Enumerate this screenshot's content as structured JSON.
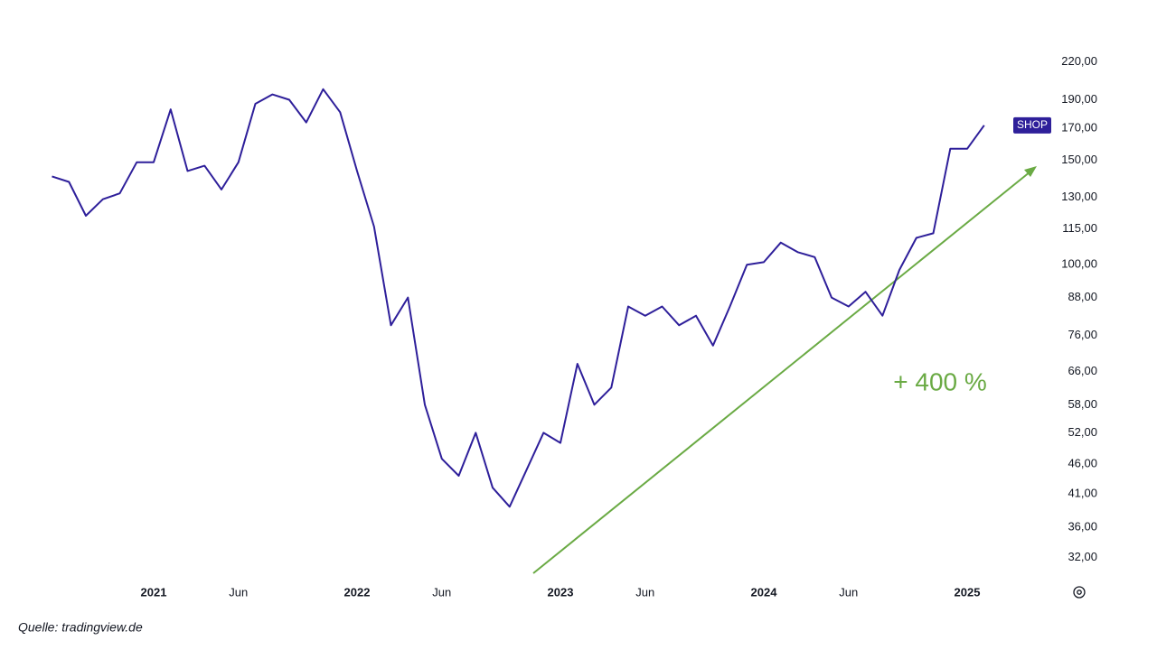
{
  "chart_data": {
    "type": "line",
    "log_scale": true,
    "grid": false,
    "annotation": "+ 400 %",
    "source": "Quelle: tradingview.de",
    "x": [
      "2020-07",
      "2020-08",
      "2020-09",
      "2020-10",
      "2020-11",
      "2020-12",
      "2021-01",
      "2021-02",
      "2021-03",
      "2021-04",
      "2021-05",
      "2021-06",
      "2021-07",
      "2021-08",
      "2021-09",
      "2021-10",
      "2021-11",
      "2021-12",
      "2022-01",
      "2022-02",
      "2022-03",
      "2022-04",
      "2022-05",
      "2022-06",
      "2022-07",
      "2022-08",
      "2022-09",
      "2022-10",
      "2022-11",
      "2022-12",
      "2023-01",
      "2023-02",
      "2023-03",
      "2023-04",
      "2023-05",
      "2023-06",
      "2023-07",
      "2023-08",
      "2023-09",
      "2023-10",
      "2023-11",
      "2023-12",
      "2024-01",
      "2024-02",
      "2024-03",
      "2024-04",
      "2024-05",
      "2024-06",
      "2024-07",
      "2024-08",
      "2024-09",
      "2024-10",
      "2024-11",
      "2024-12",
      "2025-01",
      "2025-02"
    ],
    "series": [
      {
        "name": "SHOP",
        "color": "#2e1f9a",
        "values": [
          141,
          138,
          121,
          129,
          132,
          149,
          149,
          183,
          144,
          147,
          134,
          149,
          187,
          194,
          190,
          174,
          198,
          181,
          144,
          116,
          79,
          88,
          58,
          47,
          44,
          52,
          42,
          39,
          45,
          52,
          50,
          68,
          58,
          62,
          85,
          82,
          85,
          79,
          82,
          73,
          85,
          100,
          101,
          109,
          105,
          103,
          88,
          85,
          90,
          82,
          98,
          111,
          113,
          157,
          157,
          172
        ]
      }
    ],
    "ylim": [
      30,
      240
    ],
    "yticks": [
      {
        "value": 32,
        "label": "32,00"
      },
      {
        "value": 36,
        "label": "36,00"
      },
      {
        "value": 41,
        "label": "41,00"
      },
      {
        "value": 46,
        "label": "46,00"
      },
      {
        "value": 52,
        "label": "52,00"
      },
      {
        "value": 58,
        "label": "58,00"
      },
      {
        "value": 66,
        "label": "66,00"
      },
      {
        "value": 76,
        "label": "76,00"
      },
      {
        "value": 88,
        "label": "88,00"
      },
      {
        "value": 100,
        "label": "100,00"
      },
      {
        "value": 115,
        "label": "115,00"
      },
      {
        "value": 130,
        "label": "130,00"
      },
      {
        "value": 150,
        "label": "150,00"
      },
      {
        "value": 170,
        "label": "170,00"
      },
      {
        "value": 190,
        "label": "190,00"
      },
      {
        "value": 220,
        "label": "220,00"
      }
    ],
    "xticks": [
      {
        "value": "2021-01",
        "label": "2021"
      },
      {
        "value": "2021-06",
        "label": "Jun"
      },
      {
        "value": "2022-01",
        "label": "2022"
      },
      {
        "value": "2022-06",
        "label": "Jun"
      },
      {
        "value": "2023-01",
        "label": "2023"
      },
      {
        "value": "2023-06",
        "label": "Jun"
      },
      {
        "value": "2024-01",
        "label": "2024"
      },
      {
        "value": "2024-06",
        "label": "Jun"
      },
      {
        "value": "2025-01",
        "label": "2025"
      }
    ]
  }
}
